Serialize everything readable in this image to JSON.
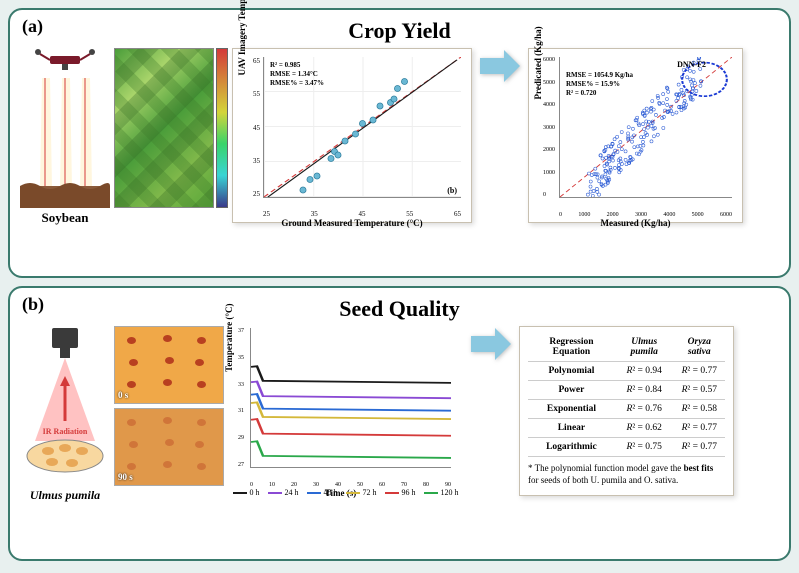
{
  "panel_a": {
    "label": "(a)",
    "title": "Crop Yield",
    "soybean_label": "Soybean",
    "uav": {
      "body_color": "#7a1a2a",
      "beam_color": "#d43a3a"
    },
    "thermal_colorbar": {
      "gradient_bottom_to_top": [
        "#3a3a8a",
        "#3ad4d4",
        "#3ad46a",
        "#d4d43a",
        "#d4883a",
        "#d43a3a"
      ]
    },
    "chart1": {
      "type": "scatter",
      "xlabel": "Ground Measured Temperature (°C)",
      "ylabel": "UAV Imagery Temperature(°C)",
      "xlim": [
        25,
        65
      ],
      "ylim": [
        25,
        65
      ],
      "xtick_step": 10,
      "ytick_step": 10,
      "marker_color": "#6ab8d4",
      "marker_edge": "#2a7a9a",
      "regression_line_color": "#1a1a1a",
      "identity_line_color": "#d43a3a",
      "identity_line_dash": "4,3",
      "stats": {
        "R2": 0.985,
        "RMSE_degC": 1.34,
        "RMSE_pct": 3.47
      },
      "stats_text_lines": [
        "R² = 0.985",
        "RMSE = 1.34°C",
        "RMSE% = 3.47%"
      ],
      "subplot_tag": "(b)",
      "points": [
        [
          28,
          27
        ],
        [
          30,
          30
        ],
        [
          32,
          31
        ],
        [
          36,
          36
        ],
        [
          37,
          38
        ],
        [
          38,
          37
        ],
        [
          40,
          41
        ],
        [
          43,
          43
        ],
        [
          45,
          46
        ],
        [
          48,
          47
        ],
        [
          50,
          51
        ],
        [
          53,
          52
        ],
        [
          55,
          56
        ],
        [
          54,
          53
        ],
        [
          57,
          58
        ]
      ]
    },
    "chart2": {
      "type": "scatter",
      "xlabel": "Measured (Kg/ha)",
      "ylabel": "Predicated (Kg/ha)",
      "xlim": [
        0,
        6000
      ],
      "ylim": [
        0,
        6000
      ],
      "xtick_step": 1000,
      "ytick_step": 1000,
      "model_label": "DNN-F2",
      "marker_color": "#ffffff",
      "marker_edge": "#2a5ad4",
      "identity_line_color": "#d43a3a",
      "identity_line_dash": "4,3",
      "highlight_circle_color": "#1a3ad4",
      "stats": {
        "RMSE_kgha": 1054.9,
        "RMSE_pct": 15.9,
        "R2": 0.72
      },
      "stats_text_lines": [
        "RMSE = 1054.9 Kg/ha",
        "RMSE% = 15.9%",
        "R² = 0.720"
      ]
    },
    "arrow_color": "#8ac8e0"
  },
  "panel_b": {
    "label": "(b)",
    "title": "Seed Quality",
    "ulmus_label": "Ulmus pumila",
    "ir_label": "IR Radiation",
    "ir_arrow_color": "#d43a3a",
    "camera_body_color": "#3a3a3a",
    "ir_img_top_badge": "0 s",
    "ir_img_bottom_badge": "90 s",
    "time_chart": {
      "type": "line",
      "xlabel": "Time (s)",
      "ylabel": "Temperature (°C)",
      "xlim": [
        0,
        90
      ],
      "ylim": [
        27,
        37
      ],
      "xtick_step": 10,
      "ytick_step": 1,
      "background_color": "#ffffff",
      "series": [
        {
          "label": "0 h",
          "color": "#1a1a1a",
          "y0": 33.2
        },
        {
          "label": "24 h",
          "color": "#8a4ad4",
          "y0": 32.1
        },
        {
          "label": "48 h",
          "color": "#2a6ad4",
          "y0": 31.2
        },
        {
          "label": "72 h",
          "color": "#d4b83a",
          "y0": 30.6
        },
        {
          "label": "96 h",
          "color": "#d43a3a",
          "y0": 29.4
        },
        {
          "label": "120 h",
          "color": "#2aa84a",
          "y0": 27.8
        }
      ]
    },
    "table": {
      "headers": [
        "Regression Equation",
        "Ulmus pumila",
        "Oryza sativa"
      ],
      "rows": [
        [
          "Polynomial",
          "R² = 0.94",
          "R² = 0.77"
        ],
        [
          "Power",
          "R² = 0.84",
          "R² = 0.57"
        ],
        [
          "Exponential",
          "R² = 0.76",
          "R² = 0.58"
        ],
        [
          "Linear",
          "R² = 0.62",
          "R² = 0.77"
        ],
        [
          "Logarithmic",
          "R² = 0.75",
          "R² = 0.77"
        ]
      ],
      "note_prefix": "* The polynomial function model gave the ",
      "note_bold": "best fits",
      "note_suffix": " for seeds of both U. pumila and O. sativa."
    },
    "arrow_color": "#8ac8e0"
  }
}
